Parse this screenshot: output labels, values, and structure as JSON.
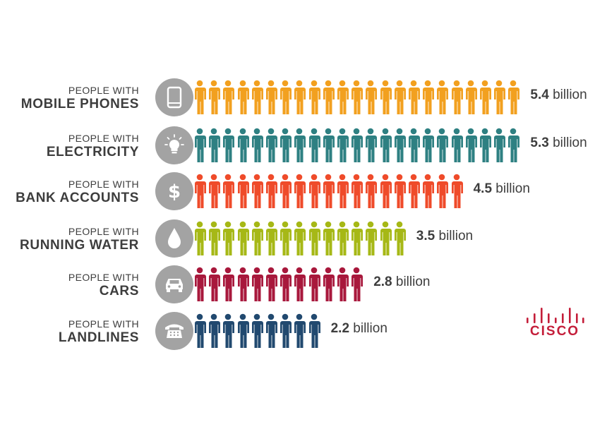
{
  "chart_data": {
    "type": "bar",
    "unit": "billion",
    "categories": [
      {
        "prefix": "PEOPLE WITH",
        "name": "MOBILE PHONES",
        "value": 5.4,
        "value_label": "5.4",
        "icon": "mobile-phone-icon",
        "color": "#f2a01f"
      },
      {
        "prefix": "PEOPLE WITH",
        "name": "ELECTRICITY",
        "value": 5.3,
        "value_label": "5.3",
        "icon": "light-bulb-icon",
        "color": "#2e8082"
      },
      {
        "prefix": "PEOPLE WITH",
        "name": "BANK ACCOUNTS",
        "value": 4.5,
        "value_label": "4.5",
        "icon": "dollar-icon",
        "color": "#ef4b2a"
      },
      {
        "prefix": "PEOPLE WITH",
        "name": "RUNNING WATER",
        "value": 3.5,
        "value_label": "3.5",
        "icon": "water-drop-icon",
        "color": "#a6b816"
      },
      {
        "prefix": "PEOPLE WITH",
        "name": "CARS",
        "value": 2.8,
        "value_label": "2.8",
        "icon": "car-icon",
        "color": "#a8183c"
      },
      {
        "prefix": "PEOPLE WITH",
        "name": "LANDLINES",
        "value": 2.2,
        "value_label": "2.2",
        "icon": "telephone-icon",
        "color": "#21496f"
      }
    ]
  },
  "logo": {
    "text": "CISCO",
    "color": "#c41e3a"
  }
}
